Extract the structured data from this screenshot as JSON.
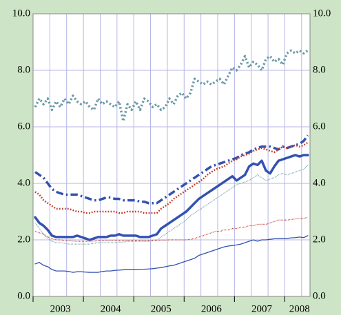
{
  "chart_data": {
    "type": "line",
    "categories": [
      null,
      null,
      null,
      null,
      null,
      null,
      "2003",
      null,
      null,
      null,
      null,
      null,
      null,
      null,
      null,
      null,
      null,
      null,
      "2004",
      null,
      null,
      null,
      null,
      null,
      null,
      null,
      null,
      null,
      null,
      null,
      "2005",
      null,
      null,
      null,
      null,
      null,
      null,
      null,
      null,
      null,
      null,
      null,
      "2006",
      null,
      null,
      null,
      null,
      null,
      null,
      null,
      null,
      null,
      null,
      null,
      "2007",
      null,
      null,
      null,
      null,
      null,
      null,
      null,
      null,
      "2008",
      null,
      null
    ],
    "ylim": [
      0,
      10
    ],
    "yticks": [
      {
        "value": 0,
        "label": "0.0"
      },
      {
        "value": 2,
        "label": "2.0"
      },
      {
        "value": 4,
        "label": "4.0"
      },
      {
        "value": 6,
        "label": "6.0"
      },
      {
        "value": 8,
        "label": "8.0"
      },
      {
        "value": 10,
        "label": "10.0"
      }
    ],
    "grid": true,
    "series": [
      {
        "color": "#6b9aa6",
        "style": "dotted",
        "weight": "thick",
        "values": [
          6.7,
          7.0,
          6.8,
          7.0,
          6.6,
          6.9,
          6.7,
          7.0,
          6.8,
          7.1,
          6.9,
          6.8,
          6.9,
          6.7,
          6.6,
          7.0,
          6.8,
          6.9,
          6.8,
          6.7,
          6.9,
          6.2,
          6.8,
          6.6,
          6.9,
          6.6,
          7.0,
          6.9,
          6.7,
          6.8,
          6.6,
          6.7,
          7.0,
          6.8,
          7.1,
          7.2,
          7.0,
          7.2,
          7.7,
          7.6,
          7.5,
          7.6,
          7.5,
          7.6,
          7.7,
          7.5,
          7.8,
          8.1,
          8.0,
          8.2,
          8.5,
          8.1,
          8.3,
          8.2,
          8.0,
          8.4,
          8.5,
          8.3,
          8.4,
          8.2,
          8.6,
          8.7,
          8.6,
          8.7,
          8.6,
          8.7
        ]
      },
      {
        "color": "#3352b0",
        "style": "dashdot",
        "weight": "thick",
        "values": [
          4.4,
          4.3,
          4.2,
          4.0,
          3.8,
          3.7,
          3.65,
          3.6,
          3.6,
          3.6,
          3.6,
          3.55,
          3.5,
          3.45,
          3.4,
          3.4,
          3.45,
          3.5,
          3.5,
          3.45,
          3.45,
          3.4,
          3.4,
          3.4,
          3.4,
          3.35,
          3.35,
          3.3,
          3.3,
          3.3,
          3.4,
          3.5,
          3.6,
          3.7,
          3.8,
          3.9,
          4.0,
          4.1,
          4.2,
          4.3,
          4.4,
          4.5,
          4.6,
          4.65,
          4.7,
          4.75,
          4.8,
          4.85,
          4.9,
          5.0,
          5.05,
          5.1,
          5.2,
          5.25,
          5.3,
          5.3,
          5.3,
          5.25,
          5.2,
          5.3,
          5.25,
          5.3,
          5.35,
          5.4,
          5.5,
          5.7
        ]
      },
      {
        "color": "#c0392b",
        "style": "dotted",
        "weight": "medium",
        "values": [
          3.7,
          3.6,
          3.4,
          3.3,
          3.2,
          3.1,
          3.1,
          3.1,
          3.1,
          3.05,
          3.0,
          3.0,
          2.95,
          2.95,
          3.0,
          3.0,
          3.0,
          3.0,
          3.0,
          3.0,
          2.95,
          2.95,
          3.0,
          3.0,
          3.0,
          3.0,
          2.95,
          2.95,
          2.95,
          2.95,
          3.1,
          3.2,
          3.3,
          3.45,
          3.55,
          3.65,
          3.75,
          3.85,
          3.95,
          4.05,
          4.15,
          4.3,
          4.4,
          4.5,
          4.55,
          4.6,
          4.7,
          4.8,
          4.85,
          4.95,
          5.0,
          5.05,
          5.15,
          5.2,
          5.25,
          5.2,
          5.15,
          5.1,
          5.2,
          5.3,
          5.25,
          5.3,
          5.35,
          5.3,
          5.35,
          5.45
        ]
      },
      {
        "color": "#3352b0",
        "style": "solid",
        "weight": "thick",
        "values": [
          2.8,
          2.6,
          2.5,
          2.35,
          2.15,
          2.1,
          2.1,
          2.1,
          2.1,
          2.1,
          2.15,
          2.1,
          2.05,
          2.0,
          2.05,
          2.1,
          2.1,
          2.1,
          2.15,
          2.15,
          2.2,
          2.15,
          2.15,
          2.15,
          2.15,
          2.1,
          2.1,
          2.1,
          2.15,
          2.2,
          2.4,
          2.5,
          2.6,
          2.7,
          2.8,
          2.9,
          3.0,
          3.15,
          3.3,
          3.45,
          3.55,
          3.65,
          3.75,
          3.85,
          3.95,
          4.05,
          4.15,
          4.25,
          4.1,
          4.2,
          4.3,
          4.6,
          4.7,
          4.65,
          4.8,
          4.45,
          4.35,
          4.6,
          4.8,
          4.85,
          4.9,
          4.95,
          5.0,
          4.95,
          5.0,
          5.0
        ]
      },
      {
        "color": "#6b9aa6",
        "style": "dotted",
        "weight": "thin",
        "values": [
          2.6,
          2.4,
          2.2,
          2.05,
          1.95,
          1.9,
          1.9,
          1.88,
          1.85,
          1.85,
          1.85,
          1.85,
          1.85,
          1.85,
          1.88,
          1.9,
          1.9,
          1.9,
          1.9,
          1.9,
          1.92,
          1.92,
          1.95,
          1.95,
          1.95,
          1.95,
          1.95,
          1.95,
          1.97,
          2.0,
          2.1,
          2.2,
          2.3,
          2.4,
          2.5,
          2.6,
          2.7,
          2.85,
          2.95,
          3.05,
          3.15,
          3.25,
          3.35,
          3.45,
          3.55,
          3.65,
          3.75,
          3.85,
          3.95,
          4.0,
          4.05,
          4.1,
          4.2,
          4.3,
          4.2,
          4.1,
          4.15,
          4.2,
          4.3,
          4.35,
          4.3,
          4.35,
          4.4,
          4.45,
          4.5,
          4.65
        ]
      },
      {
        "color": "#c0392b",
        "style": "dotted",
        "weight": "thin",
        "values": [
          2.3,
          2.25,
          2.2,
          2.1,
          2.05,
          2.0,
          2.0,
          1.98,
          1.97,
          1.96,
          1.95,
          1.95,
          1.95,
          1.95,
          1.96,
          1.97,
          1.98,
          1.98,
          1.98,
          1.98,
          1.98,
          1.98,
          1.98,
          1.98,
          1.98,
          1.98,
          1.98,
          1.98,
          1.98,
          1.98,
          1.99,
          1.99,
          2.0,
          2.0,
          2.0,
          2.0,
          2.0,
          2.02,
          2.05,
          2.1,
          2.15,
          2.2,
          2.25,
          2.3,
          2.3,
          2.35,
          2.35,
          2.4,
          2.4,
          2.45,
          2.45,
          2.5,
          2.5,
          2.55,
          2.55,
          2.55,
          2.6,
          2.65,
          2.7,
          2.7,
          2.7,
          2.72,
          2.74,
          2.75,
          2.76,
          2.8
        ]
      },
      {
        "color": "#3352b0",
        "style": "solid",
        "weight": "thin",
        "values": [
          1.15,
          1.2,
          1.1,
          1.05,
          0.95,
          0.9,
          0.9,
          0.9,
          0.88,
          0.85,
          0.87,
          0.87,
          0.86,
          0.85,
          0.85,
          0.85,
          0.88,
          0.9,
          0.9,
          0.92,
          0.93,
          0.94,
          0.95,
          0.95,
          0.95,
          0.96,
          0.96,
          0.97,
          0.98,
          1.0,
          1.02,
          1.05,
          1.08,
          1.1,
          1.15,
          1.2,
          1.25,
          1.3,
          1.35,
          1.45,
          1.5,
          1.55,
          1.6,
          1.65,
          1.7,
          1.75,
          1.78,
          1.8,
          1.82,
          1.85,
          1.9,
          1.95,
          2.0,
          1.95,
          2.0,
          2.0,
          2.02,
          2.04,
          2.05,
          2.05,
          2.05,
          2.07,
          2.08,
          2.1,
          2.08,
          2.15
        ]
      }
    ]
  }
}
